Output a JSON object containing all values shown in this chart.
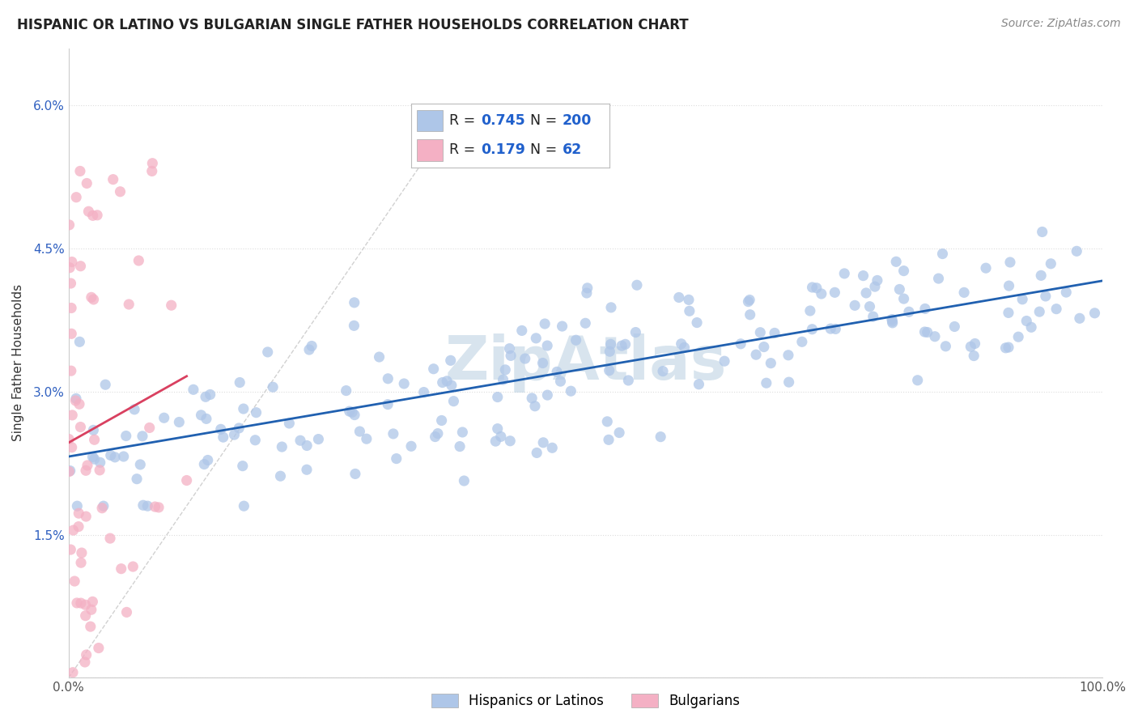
{
  "title": "HISPANIC OR LATINO VS BULGARIAN SINGLE FATHER HOUSEHOLDS CORRELATION CHART",
  "source": "Source: ZipAtlas.com",
  "ylabel_label": "Single Father Households",
  "blue_scatter_color": "#aec6e8",
  "pink_scatter_color": "#f4b0c4",
  "blue_line_color": "#2060b0",
  "pink_line_color": "#d94060",
  "ref_line_color": "#cccccc",
  "watermark": "ZipAtlas",
  "watermark_color": "#b8cfe0",
  "background_color": "#ffffff",
  "xlim": [
    0,
    100
  ],
  "ylim": [
    0,
    6.6
  ],
  "yticks": [
    0,
    1.5,
    3.0,
    4.5,
    6.0
  ],
  "ytick_labels": [
    "",
    "1.5%",
    "3.0%",
    "4.5%",
    "6.0%"
  ],
  "xtick_labels": [
    "0.0%",
    "100.0%"
  ],
  "blue_R": 0.745,
  "blue_N": 200,
  "pink_R": 0.179,
  "pink_N": 62,
  "legend_R_color": "#2060cc",
  "legend_N_color": "#2060cc",
  "legend_text_color": "#222222"
}
